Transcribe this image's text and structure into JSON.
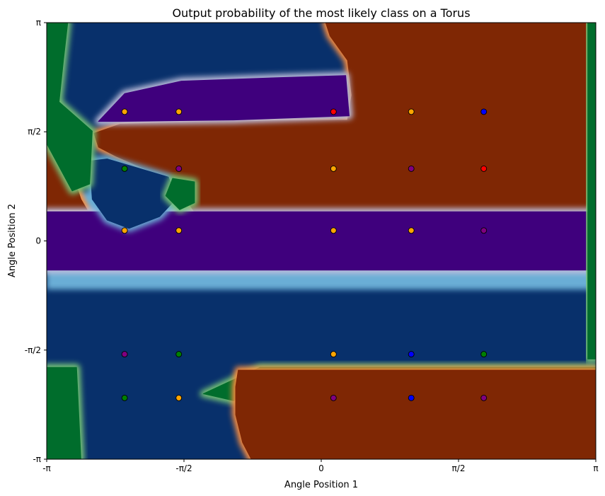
{
  "chart_data": {
    "type": "heatmap",
    "title": "Output probability of the most likely class on a Torus",
    "xlabel": "Angle Position 1",
    "ylabel": "Angle Position 2",
    "xlim": [
      -3.14159,
      3.14159
    ],
    "ylim": [
      -3.14159,
      3.14159
    ],
    "x_ticks": [
      {
        "value": -3.14159,
        "label": "-π"
      },
      {
        "value": -1.5708,
        "label": "-π/2"
      },
      {
        "value": 0,
        "label": "0"
      },
      {
        "value": 1.5708,
        "label": "π/2"
      },
      {
        "value": 3.14159,
        "label": "π"
      }
    ],
    "y_ticks": [
      {
        "value": -3.14159,
        "label": "-π"
      },
      {
        "value": -1.5708,
        "label": "-π/2"
      },
      {
        "value": 0,
        "label": "0"
      },
      {
        "value": 1.5708,
        "label": "π/2"
      },
      {
        "value": 3.14159,
        "label": "π"
      }
    ],
    "grid": false,
    "class_colors": {
      "green": "#006d2c",
      "blue": "#08306b",
      "orange": "#7f2704",
      "purple": "#3f007d"
    },
    "regions": [
      {
        "class": "orange",
        "polygon": [
          [
            0.05,
            3.14159
          ],
          [
            3.14159,
            3.14159
          ],
          [
            3.14159,
            0.42
          ],
          [
            -1.45,
            0.42
          ],
          [
            -1.55,
            0.6
          ],
          [
            -1.95,
            1.0
          ],
          [
            -2.35,
            1.22
          ],
          [
            -2.55,
            1.35
          ],
          [
            -2.6,
            1.55
          ],
          [
            -2.3,
            1.68
          ],
          [
            -1.2,
            1.72
          ],
          [
            0.3,
            1.74
          ],
          [
            0.35,
            2.1
          ],
          [
            0.3,
            2.6
          ],
          [
            0.1,
            2.95
          ]
        ]
      },
      {
        "class": "orange",
        "polygon": [
          [
            -3.14159,
            1.68
          ],
          [
            -2.95,
            1.35
          ],
          [
            -2.75,
            0.6
          ],
          [
            -2.68,
            0.45
          ],
          [
            -3.14159,
            0.45
          ]
        ]
      },
      {
        "class": "purple",
        "polygon": [
          [
            -2.55,
            1.72
          ],
          [
            -2.25,
            2.12
          ],
          [
            -1.6,
            2.3
          ],
          [
            -0.5,
            2.35
          ],
          [
            0.28,
            2.38
          ],
          [
            0.32,
            1.8
          ],
          [
            -1.0,
            1.74
          ],
          [
            -2.3,
            1.72
          ]
        ]
      },
      {
        "class": "purple",
        "polygon": [
          [
            -3.14159,
            0.42
          ],
          [
            3.14159,
            0.42
          ],
          [
            3.14159,
            -0.42
          ],
          [
            -3.14159,
            -0.42
          ]
        ]
      },
      {
        "class": "blue",
        "polygon": [
          [
            -2.65,
            1.15
          ],
          [
            -2.62,
            0.6
          ],
          [
            -2.45,
            0.3
          ],
          [
            -2.2,
            0.18
          ],
          [
            -1.85,
            0.35
          ],
          [
            -1.65,
            0.62
          ],
          [
            -1.75,
            0.92
          ],
          [
            -2.1,
            1.05
          ],
          [
            -2.45,
            1.18
          ]
        ]
      },
      {
        "class": "green",
        "polygon": [
          [
            -3.14159,
            3.14159
          ],
          [
            -2.9,
            3.14159
          ],
          [
            -2.95,
            2.6
          ],
          [
            -3.0,
            2.0
          ],
          [
            -2.62,
            1.58
          ],
          [
            -2.65,
            0.82
          ],
          [
            -2.85,
            0.72
          ],
          [
            -3.14159,
            1.4
          ]
        ]
      },
      {
        "class": "green",
        "polygon": [
          [
            -1.7,
            0.9
          ],
          [
            -1.45,
            0.85
          ],
          [
            -1.45,
            0.55
          ],
          [
            -1.62,
            0.45
          ],
          [
            -1.78,
            0.65
          ]
        ]
      },
      {
        "class": "green",
        "polygon": [
          [
            3.05,
            3.14159
          ],
          [
            3.14159,
            3.14159
          ],
          [
            3.14159,
            -1.7
          ],
          [
            3.05,
            -1.7
          ]
        ]
      },
      {
        "class": "green",
        "polygon": [
          [
            -3.14159,
            -1.82
          ],
          [
            -2.8,
            -1.82
          ],
          [
            -2.75,
            -3.14159
          ],
          [
            -3.14159,
            -3.14159
          ]
        ]
      },
      {
        "class": "green",
        "polygon": [
          [
            -1.35,
            -2.2
          ],
          [
            -0.7,
            -1.82
          ],
          [
            2.3,
            -1.82
          ],
          [
            3.14159,
            -1.82
          ],
          [
            3.14159,
            -1.95
          ],
          [
            -0.75,
            -1.95
          ],
          [
            -1.0,
            -2.3
          ]
        ]
      },
      {
        "class": "orange",
        "polygon": [
          [
            -0.95,
            -1.86
          ],
          [
            3.14159,
            -1.86
          ],
          [
            3.14159,
            -3.14159
          ],
          [
            -0.8,
            -3.14159
          ],
          [
            -0.9,
            -2.9
          ],
          [
            -0.98,
            -2.5
          ],
          [
            -0.98,
            -2.1
          ]
        ]
      }
    ],
    "points": [
      {
        "x": -2.25,
        "y": 1.86,
        "color": "#ffa500"
      },
      {
        "x": -1.63,
        "y": 1.86,
        "color": "#ffa500"
      },
      {
        "x": 0.14,
        "y": 1.86,
        "color": "#ff0000"
      },
      {
        "x": 1.03,
        "y": 1.86,
        "color": "#ffa500"
      },
      {
        "x": 1.86,
        "y": 1.86,
        "color": "#0000ff"
      },
      {
        "x": -2.25,
        "y": 1.04,
        "color": "#008000"
      },
      {
        "x": -1.63,
        "y": 1.04,
        "color": "#800080"
      },
      {
        "x": 0.14,
        "y": 1.04,
        "color": "#ffa500"
      },
      {
        "x": 1.03,
        "y": 1.04,
        "color": "#800080"
      },
      {
        "x": 1.86,
        "y": 1.04,
        "color": "#ff0000"
      },
      {
        "x": -2.25,
        "y": 0.15,
        "color": "#ffa500"
      },
      {
        "x": -1.63,
        "y": 0.15,
        "color": "#ffa500"
      },
      {
        "x": 0.14,
        "y": 0.15,
        "color": "#ffa500"
      },
      {
        "x": 1.03,
        "y": 0.15,
        "color": "#ffa500"
      },
      {
        "x": 1.86,
        "y": 0.15,
        "color": "#800080"
      },
      {
        "x": -2.25,
        "y": -1.63,
        "color": "#800080"
      },
      {
        "x": -1.63,
        "y": -1.63,
        "color": "#008000"
      },
      {
        "x": 0.14,
        "y": -1.63,
        "color": "#ffa500"
      },
      {
        "x": 1.03,
        "y": -1.63,
        "color": "#0000ff"
      },
      {
        "x": 1.86,
        "y": -1.63,
        "color": "#008000"
      },
      {
        "x": -2.25,
        "y": -2.26,
        "color": "#008000"
      },
      {
        "x": -1.63,
        "y": -2.26,
        "color": "#ffa500"
      },
      {
        "x": 0.14,
        "y": -2.26,
        "color": "#800080"
      },
      {
        "x": 1.03,
        "y": -2.26,
        "color": "#0000ff"
      },
      {
        "x": 1.86,
        "y": -2.26,
        "color": "#800080"
      }
    ]
  }
}
